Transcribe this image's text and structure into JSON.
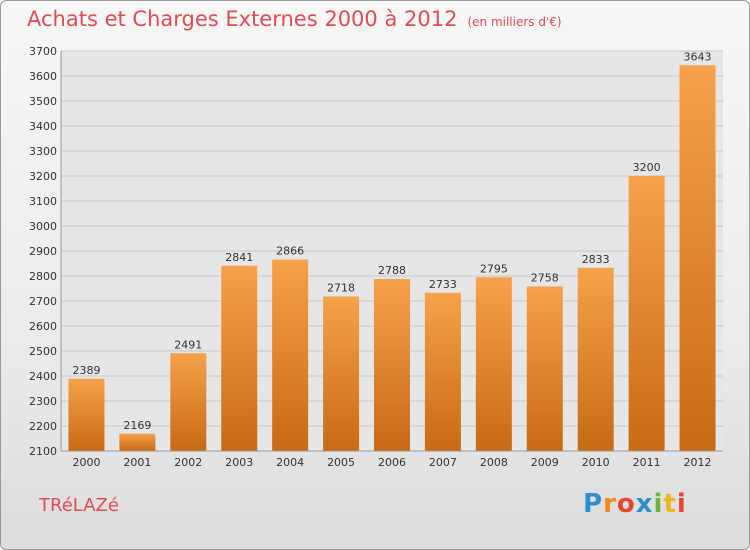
{
  "chart_data": {
    "type": "bar",
    "title": "Achats et Charges Externes 2000 à 2012",
    "subtitle": "(en milliers d'€)",
    "categories": [
      "2000",
      "2001",
      "2002",
      "2003",
      "2004",
      "2005",
      "2006",
      "2007",
      "2008",
      "2009",
      "2010",
      "2011",
      "2012"
    ],
    "values": [
      2389,
      2169,
      2491,
      2841,
      2866,
      2718,
      2788,
      2733,
      2795,
      2758,
      2833,
      3200,
      3643
    ],
    "ylim": [
      2100,
      3700
    ],
    "yticks": [
      2100,
      2200,
      2300,
      2400,
      2500,
      2600,
      2700,
      2800,
      2900,
      3000,
      3100,
      3200,
      3300,
      3400,
      3500,
      3600,
      3700
    ],
    "grid": true,
    "bar_color": "#f0963a"
  },
  "footer": {
    "city": "TRéLAZé",
    "logo_letters": [
      "P",
      "r",
      "o",
      "x",
      "i",
      "t",
      "i"
    ],
    "logo_colors": [
      "#2e8fd0",
      "#f08a1c",
      "#e8462f",
      "#2e8fd0",
      "#6db33f",
      "#f0b51c",
      "#e8462f"
    ]
  }
}
